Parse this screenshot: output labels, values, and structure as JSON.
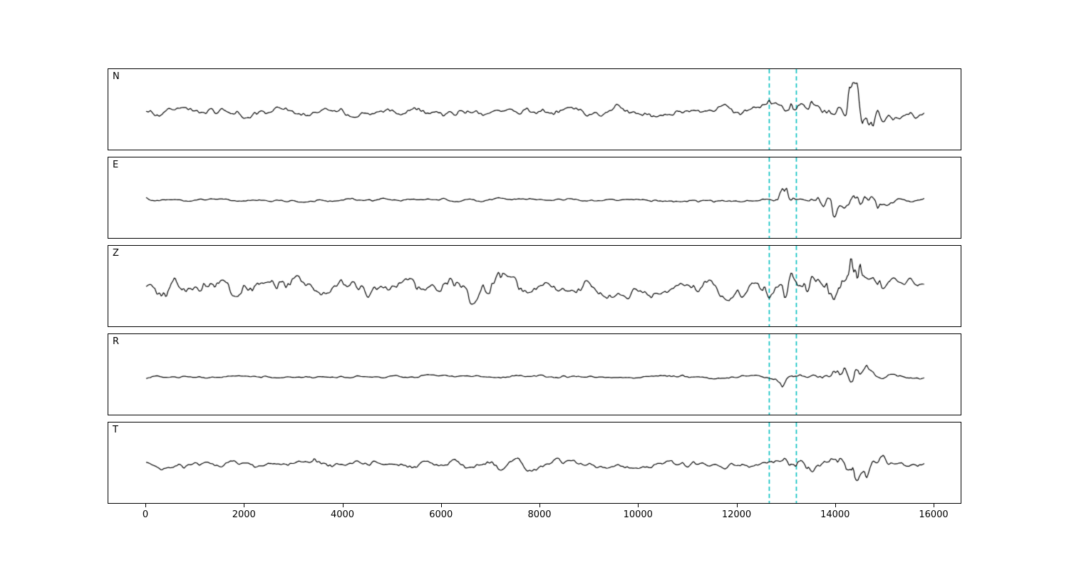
{
  "figure": {
    "background": "#ffffff",
    "border_color": "#000000"
  },
  "chart_data": {
    "type": "line",
    "title": "",
    "xlabel": "",
    "ylabel": "",
    "x_min": 0,
    "x_max_axis": 16000,
    "x_data_end": 15800,
    "xticks": [
      0,
      2000,
      4000,
      6000,
      8000,
      10000,
      12000,
      14000,
      16000
    ],
    "grid": false,
    "legend": "none",
    "trace_color": "#000000",
    "pick_color": "#00bfbf",
    "pick_lines_x": [
      12650,
      13200
    ],
    "panels": [
      {
        "label": "N",
        "seed": 11,
        "noise_amp": 9,
        "bursts": [
          [
            13250,
            13,
            450
          ],
          [
            14500,
            46,
            450
          ]
        ]
      },
      {
        "label": "E",
        "seed": 22,
        "noise_amp": 3,
        "bursts": [
          [
            12950,
            30,
            160
          ],
          [
            13800,
            32,
            300
          ],
          [
            14600,
            22,
            450
          ]
        ]
      },
      {
        "label": "Z",
        "seed": 33,
        "noise_amp": 20,
        "bursts": [
          [
            13250,
            22,
            300
          ],
          [
            14300,
            30,
            600
          ]
        ]
      },
      {
        "label": "R",
        "seed": 44,
        "noise_amp": 3,
        "bursts": [
          [
            13000,
            24,
            200
          ],
          [
            14300,
            32,
            450
          ]
        ]
      },
      {
        "label": "T",
        "seed": 55,
        "noise_amp": 8,
        "bursts": [
          [
            13200,
            16,
            300
          ],
          [
            14500,
            40,
            450
          ]
        ]
      }
    ]
  }
}
